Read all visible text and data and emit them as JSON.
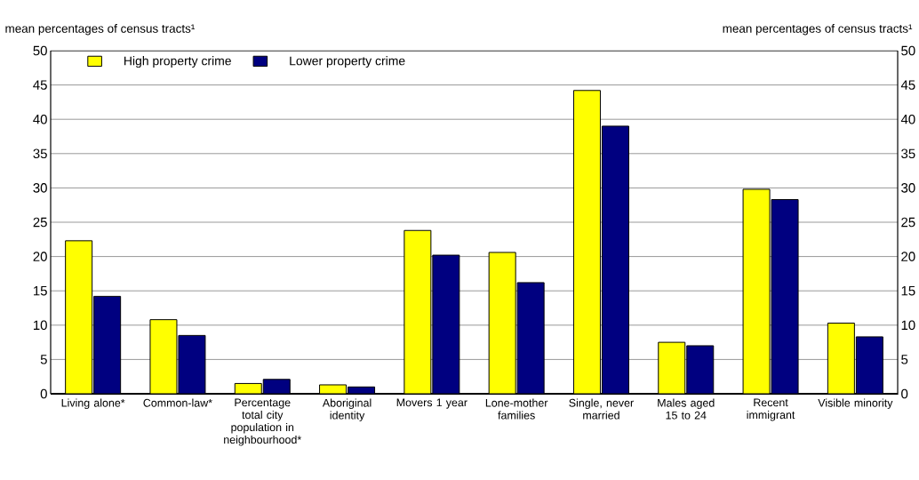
{
  "chart_data": {
    "type": "bar",
    "ylabel": "mean percentages of census tracts¹",
    "y2label": "mean percentages of census tracts¹",
    "categories": [
      "Living alone*",
      "Common-law*",
      "Percentage total city population in neighbourhood*",
      "Aboriginal identity",
      "Movers 1 year",
      "Lone-mother families",
      "Single, never married",
      "Males aged 15 to 24",
      "Recent immigrant",
      "Visible minority"
    ],
    "series": [
      {
        "name": "High property crime",
        "color": "#ffff00",
        "values": [
          22.3,
          10.8,
          1.5,
          1.3,
          23.8,
          20.6,
          44.2,
          7.5,
          29.8,
          10.3
        ]
      },
      {
        "name": "Lower property crime",
        "color": "#000080",
        "values": [
          14.2,
          8.5,
          2.1,
          1.0,
          20.2,
          16.2,
          39.0,
          7.0,
          28.3,
          8.3
        ]
      }
    ],
    "ylim": [
      0,
      50
    ],
    "yticks": [
      0,
      5,
      10,
      15,
      20,
      25,
      30,
      35,
      40,
      45,
      50
    ],
    "y2lim": [
      0,
      50
    ],
    "y2ticks": [
      0,
      5,
      10,
      15,
      20,
      25,
      30,
      35,
      40,
      45,
      50
    ],
    "grid": "y",
    "legend": "top left"
  }
}
